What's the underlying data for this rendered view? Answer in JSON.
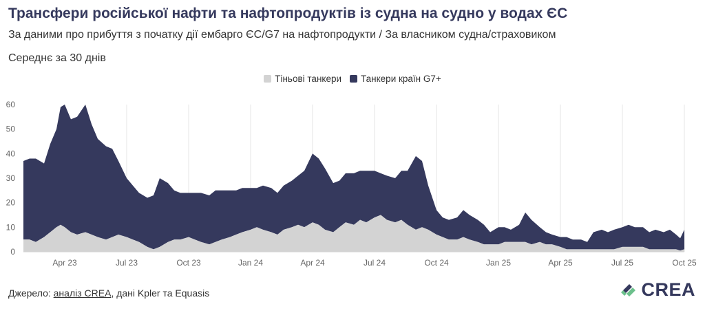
{
  "title": "Трансфери російської нафти та нафтопродуктів із судна на судно у водах ЄС",
  "subtitle": "За даними про прибуття з початку дії ембарго ЄС/G7 на нафтопродукти / За власником судна/страховиком",
  "note": "Середнє за 30 днів",
  "legend": [
    {
      "label": "Тіньові танкери",
      "color": "#d3d3d3"
    },
    {
      "label": "Танкери країн G7+",
      "color": "#35395d"
    }
  ],
  "footer": {
    "prefix": "Джерело: ",
    "link": "аналіз CREA",
    "suffix": ", дані Kpler та Equasis"
  },
  "logo": {
    "text": "CREA",
    "colors": [
      "#35395d",
      "#6cc08c"
    ]
  },
  "chart_data": {
    "type": "area",
    "stacked": true,
    "x_unit": "months since 2023-02-01",
    "x_ticks": [
      {
        "x": 2,
        "label": "Apr 23"
      },
      {
        "x": 5,
        "label": "Jul 23"
      },
      {
        "x": 8,
        "label": "Oct 23"
      },
      {
        "x": 11,
        "label": "Jan 24"
      },
      {
        "x": 14,
        "label": "Apr 24"
      },
      {
        "x": 17,
        "label": "Jul 24"
      },
      {
        "x": 20,
        "label": "Oct 24"
      },
      {
        "x": 23,
        "label": "Jan 25"
      },
      {
        "x": 26,
        "label": "Apr 25"
      },
      {
        "x": 29,
        "label": "Jul 25"
      },
      {
        "x": 32,
        "label": "Oct 25"
      }
    ],
    "ylim": [
      0,
      60
    ],
    "y_ticks": [
      0,
      10,
      20,
      30,
      40,
      50,
      60
    ],
    "xlim": [
      0,
      32
    ],
    "grid": true,
    "legend_position": "top-center",
    "series": [
      {
        "name": "Тіньові танкери",
        "color": "#d3d3d3",
        "x": [
          0,
          0.3,
          0.6,
          1.0,
          1.3,
          1.6,
          1.8,
          2.0,
          2.3,
          2.6,
          3.0,
          3.3,
          3.6,
          4.0,
          4.3,
          4.6,
          5.0,
          5.3,
          5.6,
          6.0,
          6.3,
          6.6,
          7.0,
          7.3,
          7.6,
          8.0,
          8.3,
          8.6,
          9.0,
          9.3,
          9.6,
          10.0,
          10.3,
          10.6,
          11.0,
          11.3,
          11.6,
          12.0,
          12.3,
          12.6,
          13.0,
          13.3,
          13.6,
          14.0,
          14.3,
          14.6,
          15.0,
          15.3,
          15.6,
          16.0,
          16.3,
          16.6,
          17.0,
          17.3,
          17.6,
          18.0,
          18.3,
          18.6,
          19.0,
          19.3,
          19.6,
          20.0,
          20.3,
          20.6,
          21.0,
          21.3,
          21.6,
          22.0,
          22.3,
          22.6,
          23.0,
          23.3,
          23.6,
          24.0,
          24.3,
          24.6,
          25.0,
          25.3,
          25.6,
          26.0,
          26.3,
          26.6,
          27.0,
          27.3,
          27.6,
          28.0,
          28.3,
          28.6,
          29.0,
          29.3,
          29.6,
          30.0,
          30.3,
          30.6,
          31.0,
          31.3,
          31.6,
          31.8,
          32.0
        ],
        "values": [
          5,
          5,
          4,
          6,
          8,
          10,
          11,
          10,
          8,
          7,
          8,
          7,
          6,
          5,
          6,
          7,
          6,
          5,
          4,
          2,
          1,
          2,
          4,
          5,
          5,
          6,
          5,
          4,
          3,
          4,
          5,
          6,
          7,
          8,
          9,
          10,
          9,
          8,
          7,
          9,
          10,
          11,
          10,
          12,
          11,
          9,
          8,
          10,
          12,
          11,
          13,
          12,
          14,
          15,
          13,
          12,
          13,
          11,
          9,
          10,
          9,
          7,
          6,
          5,
          5,
          6,
          5,
          4,
          3,
          3,
          3,
          4,
          4,
          4,
          4,
          3,
          4,
          3,
          3,
          2,
          1,
          1,
          1,
          1,
          1,
          1,
          1,
          1,
          2,
          2,
          2,
          2,
          1,
          1,
          1,
          1,
          1,
          0.5,
          1
        ]
      },
      {
        "name": "Танкери країн G7+",
        "color": "#35395d",
        "x": [
          0,
          0.3,
          0.6,
          1.0,
          1.3,
          1.6,
          1.8,
          2.0,
          2.3,
          2.6,
          3.0,
          3.3,
          3.6,
          4.0,
          4.3,
          4.6,
          5.0,
          5.3,
          5.6,
          6.0,
          6.3,
          6.6,
          7.0,
          7.3,
          7.6,
          8.0,
          8.3,
          8.6,
          9.0,
          9.3,
          9.6,
          10.0,
          10.3,
          10.6,
          11.0,
          11.3,
          11.6,
          12.0,
          12.3,
          12.6,
          13.0,
          13.3,
          13.6,
          14.0,
          14.3,
          14.6,
          15.0,
          15.3,
          15.6,
          16.0,
          16.3,
          16.6,
          17.0,
          17.3,
          17.6,
          18.0,
          18.3,
          18.6,
          19.0,
          19.3,
          19.6,
          20.0,
          20.3,
          20.6,
          21.0,
          21.3,
          21.6,
          22.0,
          22.3,
          22.6,
          23.0,
          23.3,
          23.6,
          24.0,
          24.3,
          24.6,
          25.0,
          25.3,
          25.6,
          26.0,
          26.3,
          26.6,
          27.0,
          27.3,
          27.6,
          28.0,
          28.3,
          28.6,
          29.0,
          29.3,
          29.6,
          30.0,
          30.3,
          30.6,
          31.0,
          31.3,
          31.6,
          31.8,
          32.0
        ],
        "values": [
          32,
          33,
          34,
          30,
          36,
          40,
          48,
          50,
          46,
          48,
          52,
          45,
          40,
          38,
          36,
          30,
          24,
          22,
          20,
          20,
          22,
          28,
          24,
          20,
          19,
          18,
          19,
          20,
          20,
          21,
          20,
          19,
          18,
          18,
          17,
          16,
          18,
          18,
          17,
          18,
          19,
          20,
          23,
          28,
          27,
          25,
          20,
          19,
          20,
          21,
          20,
          21,
          19,
          17,
          18,
          18,
          20,
          22,
          30,
          27,
          18,
          10,
          8,
          8,
          9,
          11,
          10,
          9,
          8,
          5,
          7,
          6,
          5,
          7,
          12,
          10,
          6,
          5,
          4,
          4,
          5,
          4,
          4,
          3,
          7,
          8,
          7,
          8,
          8,
          9,
          8,
          8,
          7,
          8,
          7,
          8,
          6,
          5,
          8
        ]
      }
    ]
  }
}
